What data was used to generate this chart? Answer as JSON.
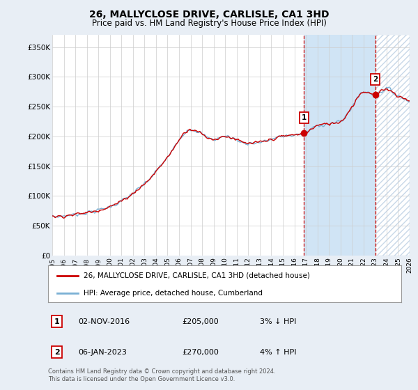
{
  "title": "26, MALLYCLOSE DRIVE, CARLISLE, CA1 3HD",
  "subtitle": "Price paid vs. HM Land Registry's House Price Index (HPI)",
  "ylim": [
    0,
    370000
  ],
  "yticks": [
    0,
    50000,
    100000,
    150000,
    200000,
    250000,
    300000,
    350000
  ],
  "ytick_labels": [
    "£0",
    "£50K",
    "£100K",
    "£150K",
    "£200K",
    "£250K",
    "£300K",
    "£350K"
  ],
  "legend_line1": "26, MALLYCLOSE DRIVE, CARLISLE, CA1 3HD (detached house)",
  "legend_line2": "HPI: Average price, detached house, Cumberland",
  "annotation1_date": "02-NOV-2016",
  "annotation1_price": "£205,000",
  "annotation1_hpi": "3% ↓ HPI",
  "annotation2_date": "06-JAN-2023",
  "annotation2_price": "£270,000",
  "annotation2_hpi": "4% ↑ HPI",
  "footer": "Contains HM Land Registry data © Crown copyright and database right 2024.\nThis data is licensed under the Open Government Licence v3.0.",
  "sale1_year": 2016.84,
  "sale1_price": 205000,
  "sale2_year": 2023.02,
  "sale2_price": 270000,
  "hpi_line_color": "#7ab0d4",
  "price_line_color": "#cc0000",
  "background_color": "#e8eef5",
  "plot_bg_color": "#ffffff",
  "grid_color": "#cccccc",
  "vline_color": "#cc0000",
  "shade_color": "#d0e4f5",
  "hatch_color": "#c8d8e8"
}
